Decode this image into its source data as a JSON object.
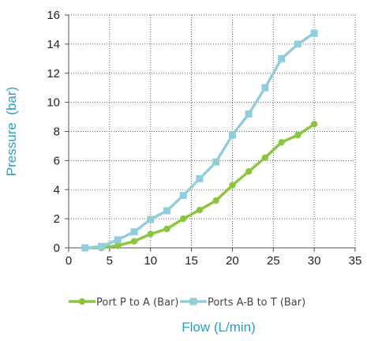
{
  "chart_data": {
    "type": "line",
    "xlabel": "Flow (L/min)",
    "ylabel": "Pressure  (bar)",
    "xlim": [
      0,
      35
    ],
    "ylim": [
      0,
      16
    ],
    "x_ticks": [
      0,
      5,
      10,
      15,
      20,
      25,
      30,
      35
    ],
    "y_ticks": [
      0,
      2,
      4,
      6,
      8,
      10,
      12,
      14,
      16
    ],
    "grid": "dotted",
    "legend_position": "bottom",
    "axis_title_color": "#2a9ec9",
    "series": [
      {
        "name": "Port P to A (Bar)",
        "color": "#8cc63f",
        "marker": "circle",
        "x": [
          2,
          4,
          6,
          8,
          10,
          12,
          14,
          16,
          18,
          20,
          22,
          24,
          26,
          28,
          30
        ],
        "y": [
          0,
          0,
          0.15,
          0.45,
          0.95,
          1.3,
          2.0,
          2.6,
          3.25,
          4.3,
          5.25,
          6.2,
          7.25,
          7.75,
          8.5
        ]
      },
      {
        "name": "Ports A-B to T (Bar)",
        "color": "#92cddc",
        "marker": "square",
        "x": [
          2,
          4,
          6,
          8,
          10,
          12,
          14,
          16,
          18,
          20,
          22,
          24,
          26,
          28,
          30
        ],
        "y": [
          0,
          0.1,
          0.55,
          1.1,
          1.95,
          2.55,
          3.6,
          4.75,
          5.9,
          7.75,
          9.2,
          11.0,
          13.0,
          14.0,
          14.75
        ]
      }
    ]
  }
}
